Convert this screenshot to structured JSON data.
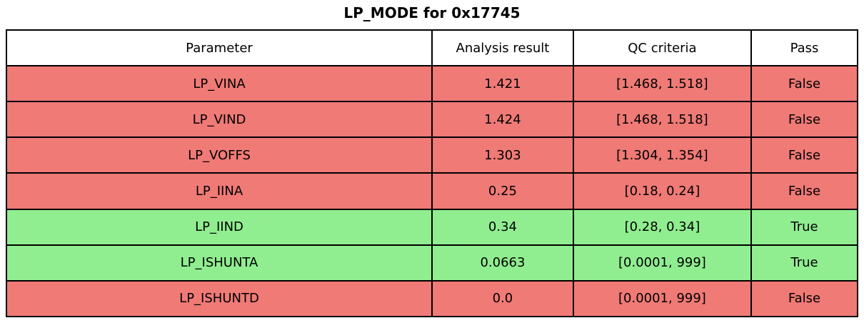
{
  "title": "LP_MODE for 0x17745",
  "chart_data": {
    "type": "table",
    "title": "LP_MODE for 0x17745",
    "columns": [
      "Parameter",
      "Analysis result",
      "QC criteria",
      "Pass"
    ],
    "rows": [
      {
        "cells": [
          "LP_VINA",
          "1.421",
          "[1.468, 1.518]",
          "False"
        ],
        "pass": false
      },
      {
        "cells": [
          "LP_VIND",
          "1.424",
          "[1.468, 1.518]",
          "False"
        ],
        "pass": false
      },
      {
        "cells": [
          "LP_VOFFS",
          "1.303",
          "[1.304, 1.354]",
          "False"
        ],
        "pass": false
      },
      {
        "cells": [
          "LP_IINA",
          "0.25",
          "[0.18, 0.24]",
          "False"
        ],
        "pass": false
      },
      {
        "cells": [
          "LP_IIND",
          "0.34",
          "[0.28, 0.34]",
          "True"
        ],
        "pass": true
      },
      {
        "cells": [
          "LP_ISHUNTA",
          "0.0663",
          "[0.0001, 999]",
          "True"
        ],
        "pass": true
      },
      {
        "cells": [
          "LP_ISHUNTD",
          "0.0",
          "[0.0001, 999]",
          "False"
        ],
        "pass": false
      }
    ],
    "colors": {
      "pass_row": "#90ee90",
      "fail_row": "#ef7a76",
      "header_row": "#ffffff",
      "border": "#000000",
      "text": "#000000"
    },
    "layout": {
      "grid": true,
      "header": "top"
    }
  }
}
